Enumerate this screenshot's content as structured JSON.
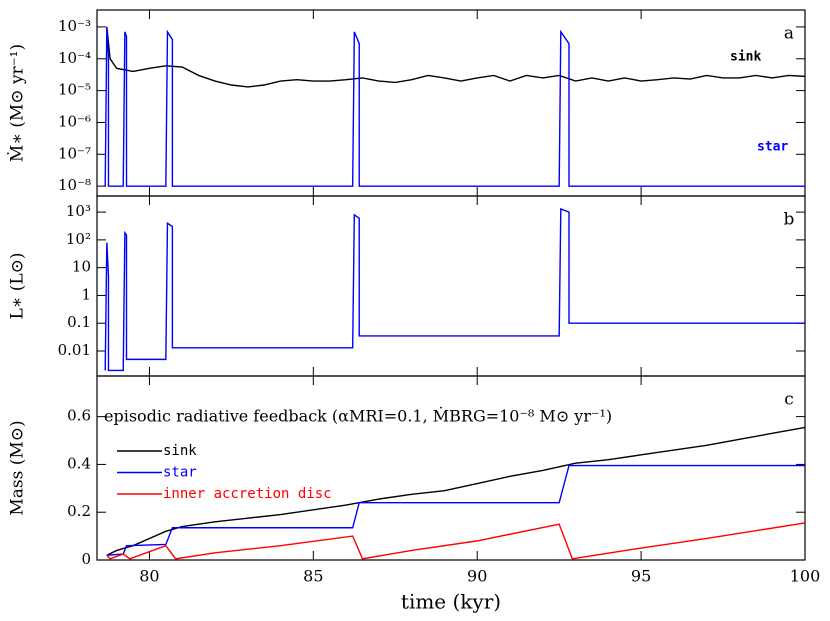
{
  "chart_data": [
    {
      "type": "line",
      "log_y": true,
      "panel_label": "a",
      "ylabel": "Ṁ∗ (M⊙ yr⁻¹)",
      "xlim": [
        78.4,
        100
      ],
      "ylim": [
        4.9e-09,
        0.0034
      ],
      "yticks": [
        {
          "value": 0.001,
          "label": "10⁻³"
        },
        {
          "value": 0.0001,
          "label": "10⁻⁴"
        },
        {
          "value": 1e-05,
          "label": "10⁻⁵"
        },
        {
          "value": 1e-06,
          "label": "10⁻⁶"
        },
        {
          "value": 1e-07,
          "label": "10⁻⁷"
        },
        {
          "value": 1e-08,
          "label": "10⁻⁸"
        }
      ],
      "series": [
        {
          "name": "sink",
          "color": "#000000",
          "x": [
            78.7,
            78.8,
            79,
            79.5,
            80,
            80.5,
            81,
            81.5,
            82,
            82.5,
            83,
            83.5,
            84,
            84.5,
            85,
            85.5,
            86,
            86.5,
            87,
            87.5,
            88,
            88.5,
            89,
            89.5,
            90,
            90.5,
            91,
            91.5,
            92,
            92.5,
            93,
            93.5,
            94,
            94.5,
            95,
            95.5,
            96,
            96.5,
            97,
            97.5,
            98,
            98.5,
            99,
            99.5,
            100
          ],
          "values": [
            0.001,
            0.0001,
            5e-05,
            4e-05,
            5e-05,
            6e-05,
            5.5e-05,
            3e-05,
            2e-05,
            1.5e-05,
            1.3e-05,
            1.5e-05,
            2e-05,
            2.2e-05,
            2e-05,
            2e-05,
            2.2e-05,
            2.5e-05,
            2e-05,
            1.8e-05,
            2.2e-05,
            3e-05,
            2.5e-05,
            2e-05,
            2.5e-05,
            3e-05,
            2e-05,
            3e-05,
            2.5e-05,
            3e-05,
            2e-05,
            2.5e-05,
            2e-05,
            2.5e-05,
            2e-05,
            2.2e-05,
            2.5e-05,
            2.3e-05,
            3e-05,
            2.5e-05,
            2.5e-05,
            3e-05,
            2.5e-05,
            3e-05,
            2.8e-05
          ]
        },
        {
          "name": "star",
          "color": "#0000ff",
          "x": [
            78.65,
            78.7,
            78.75,
            78.75,
            79.2,
            79.25,
            79.3,
            79.3,
            80.5,
            80.55,
            80.7,
            80.7,
            86.2,
            86.25,
            86.4,
            86.4,
            92.5,
            92.55,
            92.8,
            92.8,
            100
          ],
          "values": [
            1e-08,
            0.001,
            0.0001,
            1e-08,
            1e-08,
            0.0007,
            0.0005,
            1e-08,
            1e-08,
            0.0007,
            0.0004,
            1e-08,
            1e-08,
            0.0007,
            0.0003,
            1e-08,
            1e-08,
            0.0007,
            0.0003,
            1e-08,
            1e-08
          ]
        }
      ]
    },
    {
      "type": "line",
      "log_y": true,
      "panel_label": "b",
      "ylabel": "L∗ (L⊙)",
      "xlim": [
        78.4,
        100
      ],
      "ylim": [
        0.00126,
        3800
      ],
      "yticks": [
        {
          "value": 1000,
          "label": "10³"
        },
        {
          "value": 100,
          "label": "10²"
        },
        10,
        1,
        0.1,
        0.01
      ],
      "series": [
        {
          "color": "#0000ff",
          "x": [
            78.65,
            78.7,
            78.75,
            78.75,
            79.2,
            79.25,
            79.3,
            79.3,
            80.5,
            80.55,
            80.7,
            80.7,
            86.2,
            86.25,
            86.4,
            86.4,
            92.5,
            92.55,
            92.8,
            92.8,
            100
          ],
          "values": [
            0.002,
            80,
            5,
            0.002,
            0.002,
            180,
            150,
            0.005,
            0.005,
            400,
            300,
            0.013,
            0.013,
            800,
            600,
            0.035,
            0.035,
            1300,
            1000,
            0.1,
            0.1
          ]
        }
      ]
    },
    {
      "type": "line",
      "log_y": false,
      "panel_label": "c",
      "ylabel": "Mass (M⊙)",
      "xlabel": "time (kyr)",
      "annotation": "episodic radiative feedback (αMRI=0.1, ṀBRG=10⁻⁸ M⊙ yr⁻¹)",
      "xlim": [
        78.4,
        100
      ],
      "ylim": [
        0,
        0.77
      ],
      "xticks": [
        80,
        85,
        90,
        95,
        100
      ],
      "yticks": [
        0,
        0.2,
        0.4,
        0.6
      ],
      "series": [
        {
          "name": "sink",
          "color": "#000000",
          "x": [
            78.7,
            79,
            79.5,
            80,
            80.5,
            81,
            82,
            83,
            84,
            85,
            86,
            87,
            88,
            89,
            90,
            91,
            92,
            93,
            94,
            95,
            96,
            97,
            98,
            99,
            100
          ],
          "values": [
            0.02,
            0.04,
            0.06,
            0.09,
            0.12,
            0.14,
            0.16,
            0.175,
            0.19,
            0.21,
            0.23,
            0.255,
            0.275,
            0.29,
            0.32,
            0.35,
            0.375,
            0.405,
            0.42,
            0.44,
            0.46,
            0.48,
            0.505,
            0.53,
            0.555
          ]
        },
        {
          "name": "star",
          "color": "#0000ff",
          "x": [
            78.7,
            79.2,
            79.3,
            80.5,
            80.7,
            86.2,
            86.4,
            92.5,
            92.8,
            100
          ],
          "values": [
            0.02,
            0.025,
            0.06,
            0.065,
            0.135,
            0.135,
            0.24,
            0.24,
            0.395,
            0.395
          ]
        },
        {
          "name": "inner accretion disc",
          "color": "#ff0000",
          "x": [
            78.7,
            78.8,
            79.2,
            79.4,
            80.5,
            80.8,
            82,
            84,
            86.2,
            86.5,
            88,
            90,
            92.5,
            92.9,
            95,
            97,
            100
          ],
          "values": [
            0.02,
            0.005,
            0.025,
            0.005,
            0.06,
            0.005,
            0.03,
            0.06,
            0.1,
            0.005,
            0.04,
            0.08,
            0.15,
            0.005,
            0.05,
            0.09,
            0.155
          ]
        }
      ]
    }
  ]
}
